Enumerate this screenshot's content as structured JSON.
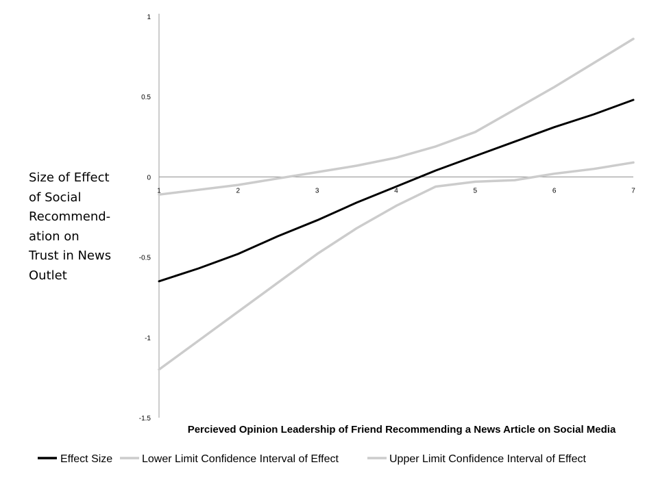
{
  "chart_data": {
    "type": "line",
    "xlabel": "Percieved Opinion Leadership of Friend Recommending a News Article on Social Media",
    "ylabel_lines": [
      "Size of Effect",
      "of Social",
      "Recommend-",
      "ation on",
      "Trust in News",
      "Outlet"
    ],
    "x_ticks": [
      "1",
      "2",
      "3",
      "4",
      "5",
      "6",
      "7"
    ],
    "y_ticks": [
      "1",
      "0.5",
      "0",
      "-0.5",
      "-1",
      "-1.5"
    ],
    "y_tick_values": [
      1,
      0.5,
      0,
      -0.5,
      -1,
      -1.5
    ],
    "xlim": [
      1,
      7
    ],
    "ylim": [
      -1.5,
      1
    ],
    "grid": false,
    "legend_position": "bottom",
    "series": [
      {
        "name": "Effect Size",
        "color": "#000000",
        "x": [
          1,
          1.5,
          2,
          2.5,
          3,
          3.5,
          4,
          4.5,
          5,
          5.5,
          6,
          6.5,
          7
        ],
        "values": [
          -0.65,
          -0.57,
          -0.48,
          -0.37,
          -0.27,
          -0.16,
          -0.06,
          0.04,
          0.13,
          0.22,
          0.31,
          0.39,
          0.48
        ]
      },
      {
        "name": "Lower Limit Confidence Interval of Effect",
        "color": "#cccccc",
        "x": [
          1,
          1.5,
          2,
          2.5,
          3,
          3.5,
          4,
          4.5,
          5,
          5.5,
          6,
          6.5,
          7
        ],
        "values": [
          -1.2,
          -1.02,
          -0.84,
          -0.66,
          -0.48,
          -0.32,
          -0.18,
          -0.06,
          -0.03,
          -0.02,
          0.02,
          0.05,
          0.09
        ]
      },
      {
        "name": "Upper Limit Confidence Interval of Effect",
        "color": "#cccccc",
        "x": [
          1,
          1.5,
          2,
          2.5,
          3,
          3.5,
          4,
          4.5,
          5,
          5.5,
          6,
          6.5,
          7
        ],
        "values": [
          -0.11,
          -0.08,
          -0.05,
          -0.01,
          0.03,
          0.07,
          0.12,
          0.19,
          0.28,
          0.42,
          0.56,
          0.71,
          0.86
        ]
      }
    ]
  }
}
